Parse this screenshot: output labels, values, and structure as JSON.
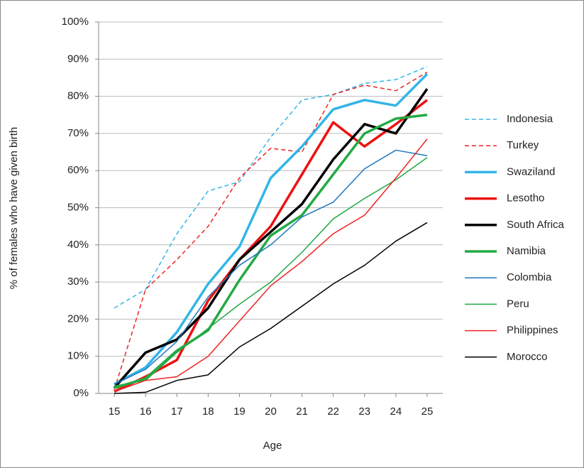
{
  "chart_data": {
    "type": "line",
    "y_label": "% of females who have given birth",
    "x_label": "Age",
    "x": [
      15,
      16,
      17,
      18,
      19,
      20,
      21,
      22,
      23,
      24,
      25
    ],
    "xlim": [
      14.5,
      25.5
    ],
    "xticks": [
      15,
      16,
      17,
      18,
      19,
      20,
      21,
      22,
      23,
      24,
      25
    ],
    "ylim": [
      0,
      100
    ],
    "yticks": [
      {
        "value": 0,
        "label": "0%"
      },
      {
        "value": 10,
        "label": "10%"
      },
      {
        "value": 20,
        "label": "20%"
      },
      {
        "value": 30,
        "label": "30%"
      },
      {
        "value": 40,
        "label": "40%"
      },
      {
        "value": 50,
        "label": "50%"
      },
      {
        "value": 60,
        "label": "60%"
      },
      {
        "value": 70,
        "label": "70%"
      },
      {
        "value": 80,
        "label": "80%"
      },
      {
        "value": 90,
        "label": "90%"
      },
      {
        "value": 100,
        "label": "100%"
      }
    ],
    "grid": true,
    "legend": "right",
    "series": [
      {
        "name": "Indonesia",
        "color": "#33b5e8",
        "width": 1.5,
        "dashed": true,
        "values": [
          23,
          28,
          43,
          54.5,
          57,
          69,
          79,
          80.5,
          83.5,
          84.5,
          88
        ]
      },
      {
        "name": "Turkey",
        "color": "#ee2222",
        "width": 1.5,
        "dashed": true,
        "values": [
          1,
          28,
          36,
          45,
          58,
          66,
          65,
          80.5,
          83,
          81.5,
          86.5
        ]
      },
      {
        "name": "Swaziland",
        "color": "#33b5e8",
        "width": 3.5,
        "dashed": false,
        "values": [
          2.5,
          7,
          16.5,
          29.5,
          39.5,
          58,
          66.5,
          76.5,
          79,
          77.5,
          86
        ]
      },
      {
        "name": "Lesotho",
        "color": "#ee1111",
        "width": 3.5,
        "dashed": false,
        "values": [
          0.5,
          4.5,
          9,
          25,
          36,
          45,
          59,
          73,
          66.5,
          72.5,
          79
        ]
      },
      {
        "name": "South Africa",
        "color": "#000000",
        "width": 3.5,
        "dashed": false,
        "values": [
          1.5,
          11,
          14.5,
          23,
          36,
          43.5,
          51,
          63,
          72.5,
          70,
          82
        ]
      },
      {
        "name": "Namibia",
        "color": "#22aa44",
        "width": 3.5,
        "dashed": false,
        "values": [
          1.5,
          4,
          11.5,
          17,
          30.5,
          42.5,
          48,
          59,
          70,
          74,
          75
        ]
      },
      {
        "name": "Colombia",
        "color": "#2277bb",
        "width": 1.5,
        "dashed": false,
        "values": [
          2.5,
          6.5,
          14,
          26,
          34.5,
          40,
          47.5,
          51.5,
          60.5,
          65.5,
          64
        ]
      },
      {
        "name": "Peru",
        "color": "#22aa44",
        "width": 1.5,
        "dashed": false,
        "values": [
          2,
          3.5,
          11,
          17.5,
          24,
          30,
          38,
          47,
          52.5,
          57.5,
          63.5
        ]
      },
      {
        "name": "Philippines",
        "color": "#ee2222",
        "width": 1.5,
        "dashed": false,
        "values": [
          0.5,
          3.5,
          4.5,
          10,
          19.5,
          29,
          35.5,
          43,
          48,
          58,
          68.5
        ]
      },
      {
        "name": "Morocco",
        "color": "#000000",
        "width": 1.5,
        "dashed": false,
        "values": [
          0,
          0.3,
          3.5,
          5,
          12.5,
          17.5,
          23.5,
          29.5,
          34.5,
          41,
          46
        ]
      }
    ]
  }
}
